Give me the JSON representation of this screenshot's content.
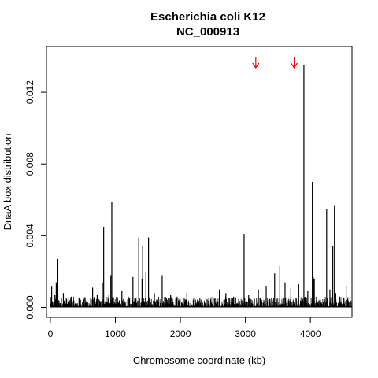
{
  "chart_data": {
    "type": "bar",
    "title": "Escherichia coli K12",
    "subtitle": "NC_000913",
    "xlabel": "Chromosome coordinate (kb)",
    "ylabel": "DnaA box distribution",
    "xlim": [
      -60,
      4640
    ],
    "ylim": [
      -0.00055,
      0.01455
    ],
    "xticks": [
      0,
      1000,
      2000,
      3000,
      4000
    ],
    "xtick_labels": [
      "0",
      "1000",
      "2000",
      "3000",
      "4000"
    ],
    "yticks": [
      0.0,
      0.004,
      0.008,
      0.012
    ],
    "ytick_labels": [
      "0.000",
      "0.004",
      "0.008",
      "0.012"
    ],
    "grid": false,
    "legend": "none",
    "bar_color": "#000000",
    "arrow_color": "#ff0000",
    "arrows_x": [
      3160,
      3750
    ],
    "peaks": [
      {
        "x": 20,
        "y": 0.0012
      },
      {
        "x": 70,
        "y": 0.0007
      },
      {
        "x": 90,
        "y": 0.0014
      },
      {
        "x": 115,
        "y": 0.0027
      },
      {
        "x": 200,
        "y": 0.0008
      },
      {
        "x": 320,
        "y": 0.0006
      },
      {
        "x": 450,
        "y": 0.0005
      },
      {
        "x": 650,
        "y": 0.0011
      },
      {
        "x": 720,
        "y": 0.0007
      },
      {
        "x": 800,
        "y": 0.0014
      },
      {
        "x": 820,
        "y": 0.0045
      },
      {
        "x": 900,
        "y": 0.0007
      },
      {
        "x": 930,
        "y": 0.0018
      },
      {
        "x": 945,
        "y": 0.0059
      },
      {
        "x": 1100,
        "y": 0.0009
      },
      {
        "x": 1200,
        "y": 0.0006
      },
      {
        "x": 1270,
        "y": 0.0017
      },
      {
        "x": 1360,
        "y": 0.0039
      },
      {
        "x": 1410,
        "y": 0.0016
      },
      {
        "x": 1420,
        "y": 0.0034
      },
      {
        "x": 1470,
        "y": 0.002
      },
      {
        "x": 1510,
        "y": 0.0039
      },
      {
        "x": 1600,
        "y": 0.0008
      },
      {
        "x": 1720,
        "y": 0.0018
      },
      {
        "x": 1850,
        "y": 0.0007
      },
      {
        "x": 1950,
        "y": 0.0006
      },
      {
        "x": 2100,
        "y": 0.0008
      },
      {
        "x": 2300,
        "y": 0.0005
      },
      {
        "x": 2500,
        "y": 0.0006
      },
      {
        "x": 2600,
        "y": 0.001
      },
      {
        "x": 2700,
        "y": 0.0008
      },
      {
        "x": 2820,
        "y": 0.0006
      },
      {
        "x": 2980,
        "y": 0.0041
      },
      {
        "x": 3050,
        "y": 0.0007
      },
      {
        "x": 3200,
        "y": 0.001
      },
      {
        "x": 3320,
        "y": 0.0012
      },
      {
        "x": 3450,
        "y": 0.0019
      },
      {
        "x": 3530,
        "y": 0.0023
      },
      {
        "x": 3610,
        "y": 0.0014
      },
      {
        "x": 3700,
        "y": 0.0011
      },
      {
        "x": 3820,
        "y": 0.0013
      },
      {
        "x": 3900,
        "y": 0.0135
      },
      {
        "x": 3960,
        "y": 0.0009
      },
      {
        "x": 4030,
        "y": 0.007
      },
      {
        "x": 4045,
        "y": 0.0017
      },
      {
        "x": 4060,
        "y": 0.0016
      },
      {
        "x": 4250,
        "y": 0.0055
      },
      {
        "x": 4300,
        "y": 0.001
      },
      {
        "x": 4345,
        "y": 0.0034
      },
      {
        "x": 4370,
        "y": 0.0057
      },
      {
        "x": 4390,
        "y": 0.0008
      },
      {
        "x": 4450,
        "y": 0.0006
      },
      {
        "x": 4550,
        "y": 0.0012
      }
    ]
  }
}
